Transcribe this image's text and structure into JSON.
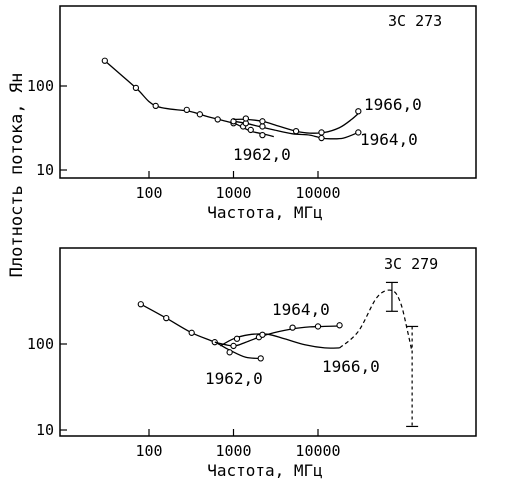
{
  "figure": {
    "ylabel": "Плотность потока, Ян"
  },
  "chart_data": [
    {
      "type": "line",
      "title": "3С 273",
      "xlabel": "Частота, МГц",
      "ylabel": "Плотность потока, Ян",
      "x_scale": "log",
      "y_scale": "log",
      "xlim": [
        23,
        130000
      ],
      "ylim": [
        8.5,
        1000
      ],
      "x_ticks": [
        100,
        1000,
        10000
      ],
      "x_tick_labels": [
        "100",
        "1000",
        "10000"
      ],
      "y_ticks": [
        10,
        100
      ],
      "y_tick_labels": [
        "10",
        "100"
      ],
      "series": [
        {
          "name": "1962,0",
          "x": [
            30,
            70,
            120,
            300,
            500,
            1000,
            1300,
            1600,
            2200,
            3000
          ],
          "y": [
            200,
            95,
            58,
            50,
            43,
            36,
            32,
            29,
            27,
            25
          ],
          "points": [
            {
              "x": 30,
              "y": 200
            },
            {
              "x": 70,
              "y": 95
            },
            {
              "x": 120,
              "y": 58
            },
            {
              "x": 280,
              "y": 52
            },
            {
              "x": 400,
              "y": 46
            },
            {
              "x": 650,
              "y": 40
            },
            {
              "x": 1000,
              "y": 36
            },
            {
              "x": 1300,
              "y": 33
            },
            {
              "x": 1600,
              "y": 30
            },
            {
              "x": 2200,
              "y": 26
            }
          ]
        },
        {
          "name": "1964,0",
          "x": [
            1000,
            1400,
            2000,
            3000,
            5000,
            8000,
            11000,
            14000,
            20000,
            30000
          ],
          "y": [
            38,
            36,
            33,
            30,
            27,
            26,
            24,
            23.5,
            24,
            28
          ],
          "points": [
            {
              "x": 1000,
              "y": 38
            },
            {
              "x": 1400,
              "y": 36
            },
            {
              "x": 2200,
              "y": 33
            },
            {
              "x": 11000,
              "y": 24
            },
            {
              "x": 30000,
              "y": 28
            }
          ]
        },
        {
          "name": "1966,0",
          "x": [
            1000,
            1400,
            2200,
            3500,
            5500,
            8000,
            12000,
            18000,
            25000,
            32000
          ],
          "y": [
            40,
            40,
            38,
            33,
            29,
            27.5,
            28,
            32,
            40,
            50
          ],
          "points": [
            {
              "x": 1400,
              "y": 41
            },
            {
              "x": 2200,
              "y": 38
            },
            {
              "x": 5500,
              "y": 29
            },
            {
              "x": 11000,
              "y": 28
            },
            {
              "x": 30000,
              "y": 50
            }
          ]
        }
      ]
    },
    {
      "type": "line",
      "title": "3С 279",
      "xlabel": "Частота, МГц",
      "ylabel": "Плотность потока, Ян",
      "x_scale": "log",
      "y_scale": "log",
      "xlim": [
        23,
        130000
      ],
      "ylim": [
        8.5,
        1000
      ],
      "x_ticks": [
        100,
        1000,
        10000
      ],
      "x_tick_labels": [
        "100",
        "1000",
        "10000"
      ],
      "y_ticks": [
        10,
        100
      ],
      "y_tick_labels": [
        "10",
        "100"
      ],
      "series": [
        {
          "name": "1962,0",
          "x": [
            80,
            160,
            320,
            600,
            900,
            1400,
            2100
          ],
          "y": [
            290,
            200,
            135,
            105,
            85,
            70,
            68
          ],
          "points": [
            {
              "x": 80,
              "y": 290
            },
            {
              "x": 160,
              "y": 200
            },
            {
              "x": 320,
              "y": 135
            },
            {
              "x": 600,
              "y": 105
            },
            {
              "x": 900,
              "y": 80
            },
            {
              "x": 2100,
              "y": 68
            }
          ]
        },
        {
          "name": "1964,0",
          "x": [
            600,
            1000,
            1400,
            2000,
            3000,
            5000,
            8000,
            12000,
            18000
          ],
          "y": [
            105,
            95,
            105,
            120,
            135,
            150,
            158,
            160,
            162
          ],
          "points": [
            {
              "x": 1000,
              "y": 95
            },
            {
              "x": 2000,
              "y": 120
            },
            {
              "x": 5000,
              "y": 155
            },
            {
              "x": 10000,
              "y": 160
            },
            {
              "x": 18000,
              "y": 165
            }
          ]
        },
        {
          "name": "1966,0",
          "x": [
            700,
            1000,
            1500,
            2500,
            4000,
            7000,
            12000,
            18000
          ],
          "y": [
            95,
            115,
            128,
            130,
            115,
            98,
            90,
            90
          ],
          "points": [
            {
              "x": 1100,
              "y": 115
            },
            {
              "x": 2200,
              "y": 128
            }
          ],
          "extrapolated": {
            "x": [
              18000,
              30000,
              50000,
              75000,
              95000,
              115000,
              130000
            ],
            "y": [
              90,
              140,
              350,
              420,
              300,
              140,
              80
            ]
          },
          "error_bars": [
            {
              "x": 75000,
              "y_low": 240,
              "y_high": 520
            },
            {
              "x": 130000,
              "y_low": 11,
              "y_high": 160
            }
          ]
        }
      ]
    }
  ]
}
